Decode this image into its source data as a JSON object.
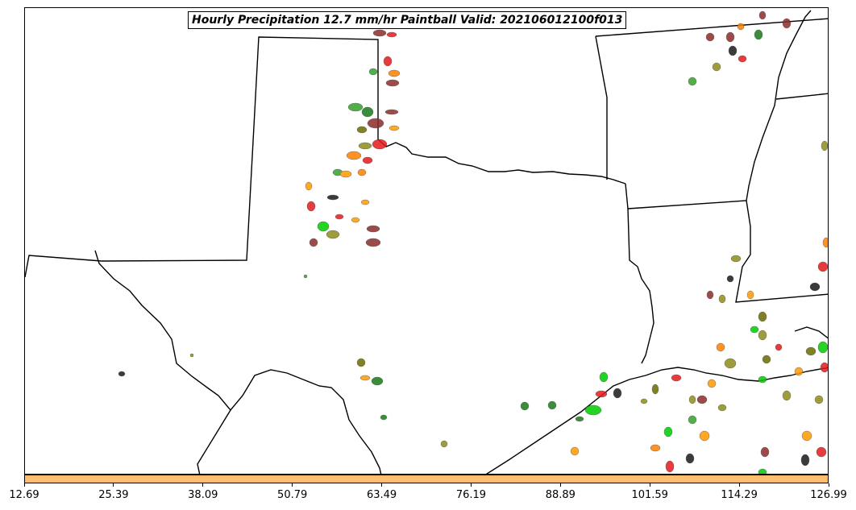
{
  "title": "Hourly Precipitation 12.7 mm/hr Paintball Valid: 202106012100f013",
  "colorbar": {
    "color": "#fdbf6f",
    "ticks": [
      "12.69",
      "25.39",
      "38.09",
      "50.79",
      "63.49",
      "76.19",
      "88.89",
      "101.59",
      "114.29",
      "126.99"
    ]
  },
  "colors": {
    "map_background": "#ffffff",
    "boundaries": "#000000",
    "paintball_members": [
      "#e31a1c",
      "#ff7f00",
      "#ff9900",
      "#33a02c",
      "#1a7a1a",
      "#8b2c2c",
      "#8c8c1a",
      "#6b6b00",
      "#1a1a1a",
      "#00cc00",
      "#a52a2a"
    ]
  }
}
